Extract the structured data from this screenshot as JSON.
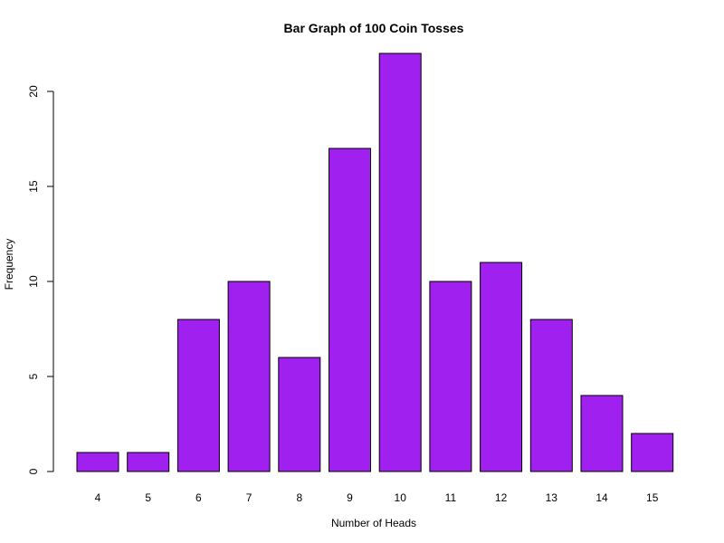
{
  "chart_data": {
    "type": "bar",
    "title": "Bar Graph of 100 Coin Tosses",
    "xlabel": "Number of Heads",
    "ylabel": "Frequency",
    "categories": [
      "4",
      "5",
      "6",
      "7",
      "8",
      "9",
      "10",
      "11",
      "12",
      "13",
      "14",
      "15"
    ],
    "values": [
      1,
      1,
      8,
      10,
      6,
      17,
      22,
      10,
      11,
      8,
      4,
      2
    ],
    "ylim": [
      0,
      22
    ],
    "yticks": [
      0,
      5,
      10,
      15,
      20
    ],
    "bar_color": "#A020F0",
    "grid": false,
    "legend": "none"
  }
}
